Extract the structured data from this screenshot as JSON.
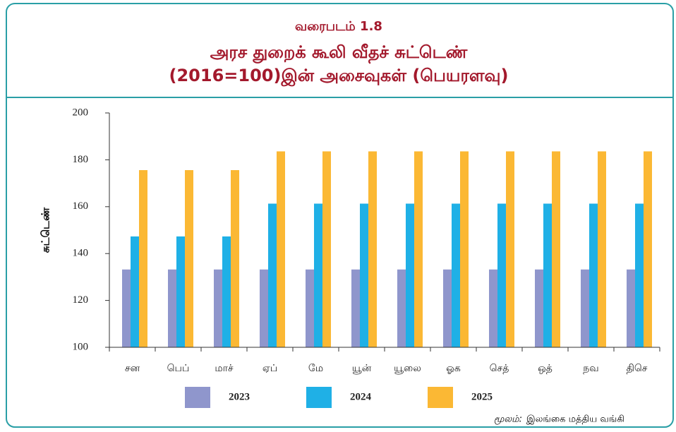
{
  "chart_data": {
    "type": "bar",
    "title": "வரைபடம் 1.8",
    "subtitle": [
      "அரச துறைக் கூலி வீதச் சுட்டெண்",
      "(2016=100)இன் அசைவுகள் (பெயரளவு)"
    ],
    "ylabel": "சுட்டெண்",
    "categories": [
      "சன",
      "பெப்",
      "மாச்",
      "ஏப்",
      "மே",
      "யூன்",
      "யூலை",
      "ஓக",
      "செத்",
      "ஒத்",
      "நவ",
      "திசெ"
    ],
    "series": [
      {
        "name": "2023",
        "color": "#8f96cc",
        "values": [
          133.2,
          133.2,
          133.2,
          133.2,
          133.2,
          133.2,
          133.2,
          133.2,
          133.2,
          133.2,
          133.2,
          133.2
        ]
      },
      {
        "name": "2024",
        "color": "#1fb0e6",
        "values": [
          147.3,
          147.3,
          147.3,
          161.3,
          161.3,
          161.3,
          161.3,
          161.3,
          161.3,
          161.3,
          161.3,
          161.3
        ]
      },
      {
        "name": "2025",
        "color": "#fbb834",
        "values": [
          175.6,
          175.6,
          175.6,
          183.6,
          183.6,
          183.6,
          183.6,
          183.6,
          183.6,
          183.6,
          183.6,
          183.6
        ]
      }
    ],
    "ylim": [
      100,
      200
    ],
    "yticks": [
      100,
      120,
      140,
      160,
      180,
      200
    ],
    "grid": false,
    "legend": "bottom",
    "source_label": "மூலம்:",
    "source": "இலங்கை மத்திய வங்கி"
  }
}
